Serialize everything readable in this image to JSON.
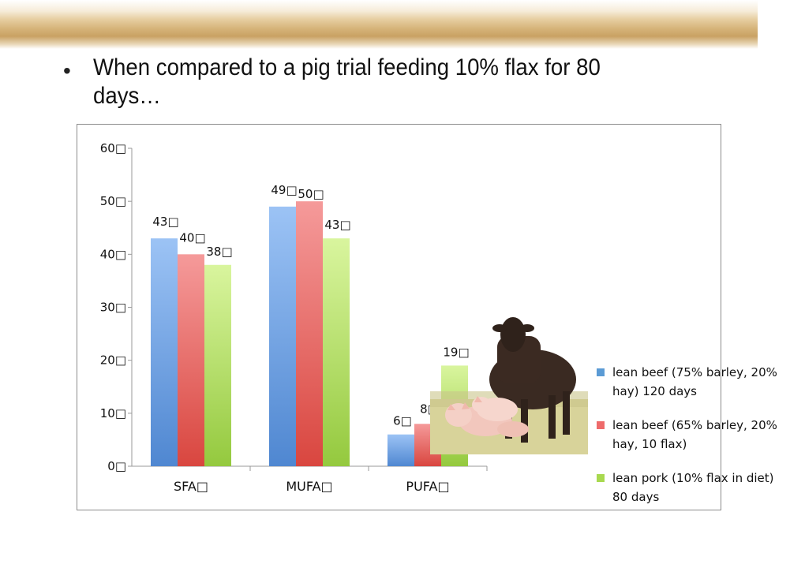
{
  "slide": {
    "bullet_symbol": "•",
    "bullet_text": "When compared to a pig trial feeding 10% flax for 80 days…"
  },
  "colors": {
    "series_1": "#5b9bd5",
    "series_2": "#ee6b6b",
    "series_3": "#a8d94f",
    "axis": "#999999",
    "header_band": "#c9a163"
  },
  "chart_data": {
    "type": "bar",
    "categories": [
      "SFA",
      "MUFA",
      "PUFA"
    ],
    "series": [
      {
        "name": "lean beef (75% barley, 20% hay) 120 days",
        "values": [
          43,
          49,
          6
        ]
      },
      {
        "name": "lean beef (65% barley, 20% hay, 10 flax)",
        "values": [
          40,
          50,
          8
        ]
      },
      {
        "name": "lean pork (10% flax in diet) 80 days",
        "values": [
          38,
          43,
          19
        ]
      }
    ],
    "ylim": [
      0,
      60
    ],
    "yticks": [
      0,
      10,
      20,
      30,
      40,
      50,
      60
    ],
    "grid": false,
    "legend_position": "right",
    "data_labels": true,
    "missing_glyph": "□"
  },
  "image": {
    "icon": "cow-and-pigs-photo"
  }
}
